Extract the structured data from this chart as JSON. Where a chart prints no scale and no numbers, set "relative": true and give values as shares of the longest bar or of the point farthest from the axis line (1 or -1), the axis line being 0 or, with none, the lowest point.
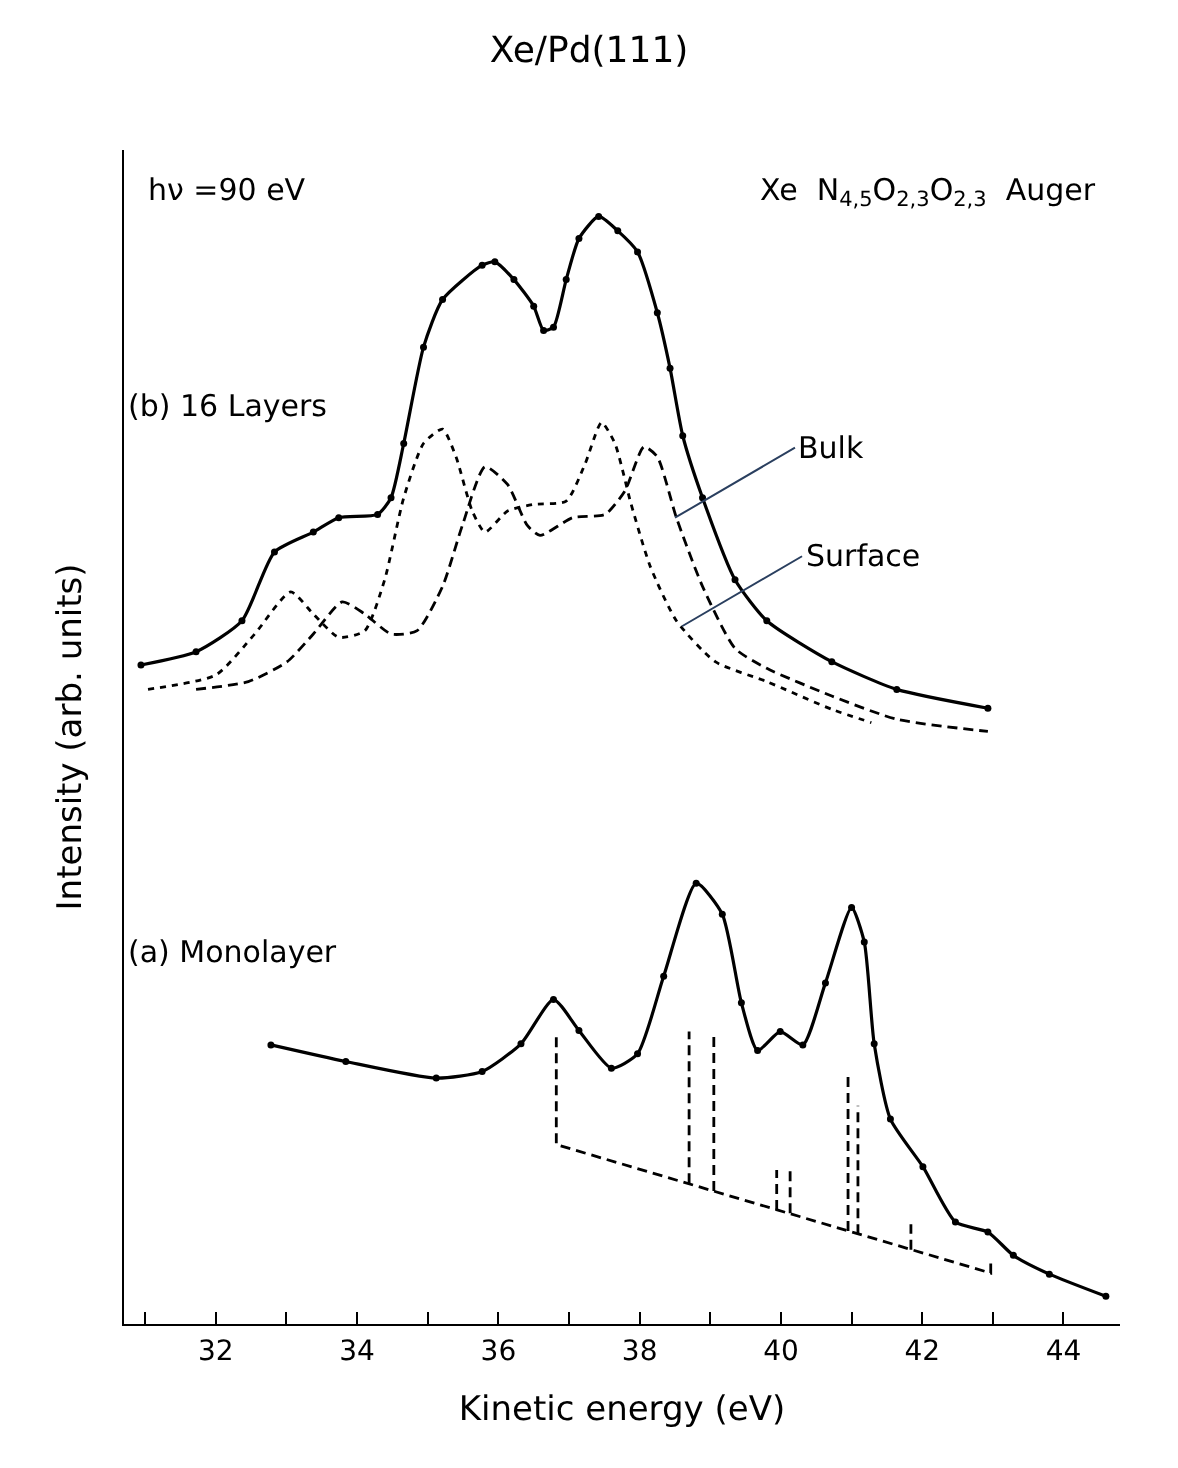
{
  "chart_data": {
    "type": "line",
    "title": "Xe/Pd(111)",
    "xlabel": "Kinetic energy (eV)",
    "ylabel": "Intensity (arb. units)",
    "relative": true,
    "xlim": [
      30.7,
      44.8
    ],
    "xticks": [
      {
        "value": 31,
        "label": null
      },
      32,
      {
        "value": 33,
        "label": null
      },
      34,
      {
        "value": 35,
        "label": null
      },
      36,
      {
        "value": 37,
        "label": null
      },
      38,
      {
        "value": 39,
        "label": null
      },
      40,
      {
        "value": 41,
        "label": null
      },
      42,
      {
        "value": 43,
        "label": null
      },
      44
    ],
    "annotations": [
      "hν =90 eV",
      "Xe  N$_{4,5}$O$_{2,3}$O$_{2,3}$  Auger",
      "(b) 16 Layers",
      "(a) Monolayer",
      {
        "text": "Bulk",
        "x": 38.5,
        "y": 0.728
      },
      {
        "text": "Surface",
        "x": 38.6,
        "y": 0.63
      }
    ],
    "series": [
      {
        "color": "#000000",
        "marker": "circle",
        "line_style": "solid",
        "x": [
          30.94,
          31.72,
          32.37,
          32.83,
          33.38,
          33.74,
          34.29,
          34.48,
          34.66,
          34.94,
          35.21,
          35.77,
          35.95,
          36.22,
          36.5,
          36.64,
          36.78,
          36.96,
          37.14,
          37.42,
          37.69,
          37.97,
          38.25,
          38.43,
          38.61,
          38.89,
          39.35,
          39.8,
          40.72,
          41.64,
          42.93
        ],
        "values": [
          0.595,
          0.607,
          0.635,
          0.697,
          0.715,
          0.728,
          0.731,
          0.746,
          0.795,
          0.882,
          0.925,
          0.956,
          0.959,
          0.943,
          0.919,
          0.897,
          0.9,
          0.943,
          0.98,
          1.0,
          0.987,
          0.968,
          0.913,
          0.863,
          0.802,
          0.746,
          0.672,
          0.635,
          0.598,
          0.573,
          0.556
        ]
      },
      {
        "color": "#000000",
        "marker": "none",
        "line_style": "dotted",
        "x": [
          31.04,
          32.0,
          32.55,
          33.06,
          33.38,
          33.74,
          34.11,
          34.39,
          34.66,
          34.94,
          35.21,
          35.4,
          35.63,
          35.81,
          36.13,
          36.5,
          36.96,
          37.23,
          37.46,
          37.65,
          37.88,
          38.15,
          38.52,
          39.07,
          39.8,
          40.72,
          41.28
        ],
        "values": [
          0.573,
          0.586,
          0.623,
          0.661,
          0.641,
          0.62,
          0.626,
          0.672,
          0.746,
          0.795,
          0.808,
          0.783,
          0.734,
          0.715,
          0.734,
          0.74,
          0.743,
          0.777,
          0.814,
          0.795,
          0.74,
          0.684,
          0.635,
          0.598,
          0.58,
          0.555,
          0.543
        ]
      },
      {
        "color": "#000000",
        "marker": "none",
        "line_style": "dashed",
        "x": [
          31.72,
          32.46,
          33.01,
          33.38,
          33.79,
          34.11,
          34.48,
          34.85,
          35.21,
          35.49,
          35.81,
          36.13,
          36.41,
          36.59,
          37.05,
          37.51,
          37.79,
          38.06,
          38.25,
          38.52,
          38.89,
          39.35,
          39.8,
          40.72,
          41.64,
          42.93
        ],
        "values": [
          0.573,
          0.58,
          0.598,
          0.623,
          0.652,
          0.641,
          0.623,
          0.626,
          0.666,
          0.721,
          0.774,
          0.758,
          0.721,
          0.712,
          0.728,
          0.731,
          0.752,
          0.792,
          0.783,
          0.728,
          0.666,
          0.61,
          0.592,
          0.567,
          0.546,
          0.535
        ]
      },
      {
        "color": "#000000",
        "marker": "circle",
        "line_style": "solid",
        "x": [
          32.78,
          33.84,
          35.12,
          35.77,
          36.32,
          36.78,
          37.14,
          37.6,
          37.97,
          38.34,
          38.8,
          39.17,
          39.44,
          39.67,
          39.99,
          40.31,
          40.63,
          41.0,
          41.18,
          41.32,
          41.55,
          42.01,
          42.47,
          42.93,
          43.29,
          43.8,
          44.6
        ],
        "values": [
          0.252,
          0.237,
          0.222,
          0.228,
          0.253,
          0.293,
          0.265,
          0.231,
          0.244,
          0.314,
          0.398,
          0.37,
          0.29,
          0.247,
          0.264,
          0.252,
          0.308,
          0.376,
          0.345,
          0.253,
          0.185,
          0.142,
          0.092,
          0.083,
          0.062,
          0.045,
          0.025
        ]
      },
      {
        "color": "#000000",
        "marker": "none",
        "line_style": "dashed",
        "x": [
          36.82,
          36.82,
          42.97,
          42.97,
          null,
          38.7,
          38.7,
          null,
          39.05,
          39.05,
          null,
          39.94,
          39.94,
          null,
          40.13,
          40.13,
          null,
          40.95,
          40.95,
          null,
          41.09,
          41.09,
          null,
          41.84,
          41.84
        ],
        "values": [
          0.259,
          0.162,
          0.046,
          0.055,
          null,
          0.127,
          0.264,
          null,
          0.12,
          0.264,
          null,
          0.103,
          0.139,
          null,
          0.1,
          0.139,
          null,
          0.084,
          0.228,
          null,
          0.081,
          0.197,
          null,
          0.067,
          0.09
        ]
      }
    ]
  }
}
